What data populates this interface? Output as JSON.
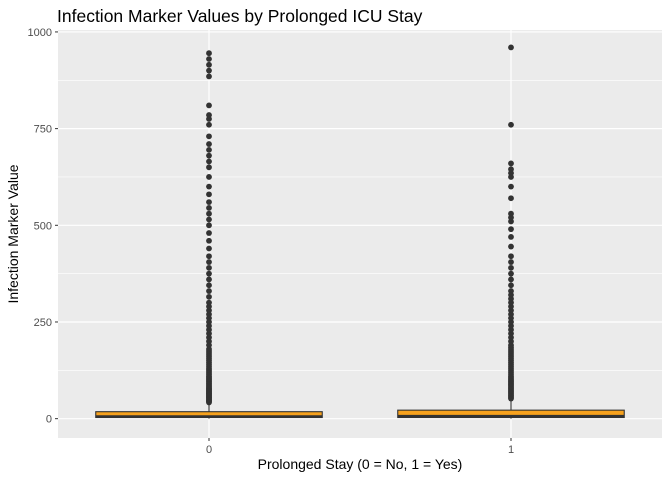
{
  "chart_data": {
    "type": "box",
    "title": "Infection Marker Values by Prolonged ICU Stay",
    "xlabel": "Prolonged Stay (0 = No, 1 = Yes)",
    "ylabel": "Infection Marker Value",
    "categories": [
      "0",
      "1"
    ],
    "y_ticks": [
      0,
      250,
      500,
      750,
      1000
    ],
    "ylim": [
      -50,
      1005
    ],
    "grid": true,
    "legend": "none",
    "box_fill": "#F7A21E",
    "box_stroke": "#333333",
    "panel_background": "#EBEBEB",
    "grid_color": "#FFFFFF",
    "point_color": "#333333",
    "boxes": [
      {
        "category": "0",
        "q1": 3,
        "median": 6,
        "q3": 18,
        "whisker_low": 0,
        "whisker_high": 40,
        "outliers": [
          42,
          44,
          46,
          48,
          50,
          52,
          54,
          56,
          58,
          60,
          62,
          64,
          66,
          68,
          70,
          72,
          74,
          76,
          78,
          80,
          83,
          86,
          89,
          92,
          95,
          98,
          101,
          104,
          107,
          110,
          114,
          118,
          122,
          126,
          130,
          135,
          140,
          145,
          150,
          155,
          160,
          165,
          170,
          175,
          180,
          190,
          200,
          210,
          220,
          230,
          240,
          250,
          260,
          270,
          280,
          290,
          300,
          315,
          330,
          345,
          360,
          375,
          390,
          405,
          420,
          440,
          460,
          480,
          500,
          515,
          530,
          545,
          560,
          580,
          600,
          625,
          650,
          665,
          680,
          695,
          710,
          730,
          760,
          775,
          785,
          810,
          885,
          900,
          915,
          930,
          945
        ]
      },
      {
        "category": "1",
        "q1": 3,
        "median": 7,
        "q3": 22,
        "whisker_low": 0,
        "whisker_high": 50,
        "outliers": [
          52,
          55,
          58,
          61,
          64,
          67,
          70,
          73,
          76,
          79,
          82,
          85,
          88,
          91,
          94,
          97,
          100,
          103,
          106,
          110,
          115,
          120,
          125,
          130,
          135,
          140,
          145,
          150,
          155,
          160,
          165,
          170,
          175,
          180,
          185,
          190,
          200,
          210,
          220,
          230,
          240,
          250,
          260,
          270,
          280,
          290,
          300,
          310,
          320,
          330,
          345,
          360,
          375,
          390,
          405,
          420,
          445,
          470,
          490,
          510,
          520,
          530,
          570,
          600,
          625,
          635,
          645,
          660,
          760,
          960
        ]
      }
    ]
  }
}
